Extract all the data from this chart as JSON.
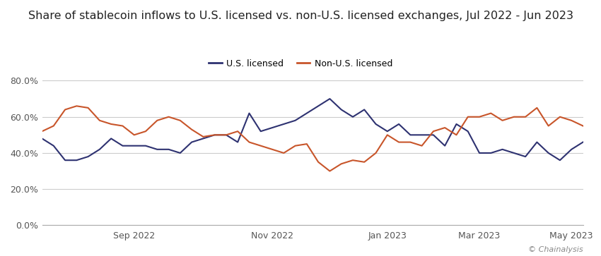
{
  "title": "Share of stablecoin inflows to U.S. licensed vs. non-U.S. licensed exchanges, Jul 2022 - Jun 2023",
  "source": "© Chainalysis",
  "legend": [
    "U.S. licensed",
    "Non-U.S. licensed"
  ],
  "us_color": "#2e3271",
  "non_us_color": "#c8552a",
  "background_color": "#ffffff",
  "ylim": [
    0.0,
    0.85
  ],
  "yticks": [
    0.0,
    0.2,
    0.4,
    0.6,
    0.8
  ],
  "ytick_labels": [
    "0.0%",
    "20.0%",
    "40.0%",
    "60.0%",
    "80.0%"
  ],
  "us_licensed": [
    0.48,
    0.44,
    0.36,
    0.36,
    0.38,
    0.42,
    0.48,
    0.44,
    0.44,
    0.44,
    0.42,
    0.42,
    0.4,
    0.46,
    0.48,
    0.5,
    0.5,
    0.46,
    0.62,
    0.52,
    0.54,
    0.56,
    0.58,
    0.62,
    0.66,
    0.7,
    0.64,
    0.6,
    0.64,
    0.56,
    0.52,
    0.56,
    0.5,
    0.5,
    0.5,
    0.44,
    0.56,
    0.52,
    0.4,
    0.4,
    0.42,
    0.4,
    0.38,
    0.46,
    0.4,
    0.36,
    0.42,
    0.46
  ],
  "non_us_licensed": [
    0.52,
    0.55,
    0.64,
    0.66,
    0.65,
    0.58,
    0.56,
    0.55,
    0.5,
    0.52,
    0.58,
    0.6,
    0.58,
    0.53,
    0.49,
    0.5,
    0.5,
    0.52,
    0.46,
    0.44,
    0.42,
    0.4,
    0.44,
    0.45,
    0.35,
    0.3,
    0.34,
    0.36,
    0.35,
    0.4,
    0.5,
    0.46,
    0.46,
    0.44,
    0.52,
    0.54,
    0.5,
    0.6,
    0.6,
    0.62,
    0.58,
    0.6,
    0.6,
    0.65,
    0.55,
    0.6,
    0.58,
    0.55
  ],
  "x_tick_labels": [
    "Sep 2022",
    "Nov 2022",
    "Jan 2023",
    "Mar 2023",
    "May 2023"
  ],
  "x_tick_positions": [
    8,
    20,
    30,
    38,
    46
  ]
}
